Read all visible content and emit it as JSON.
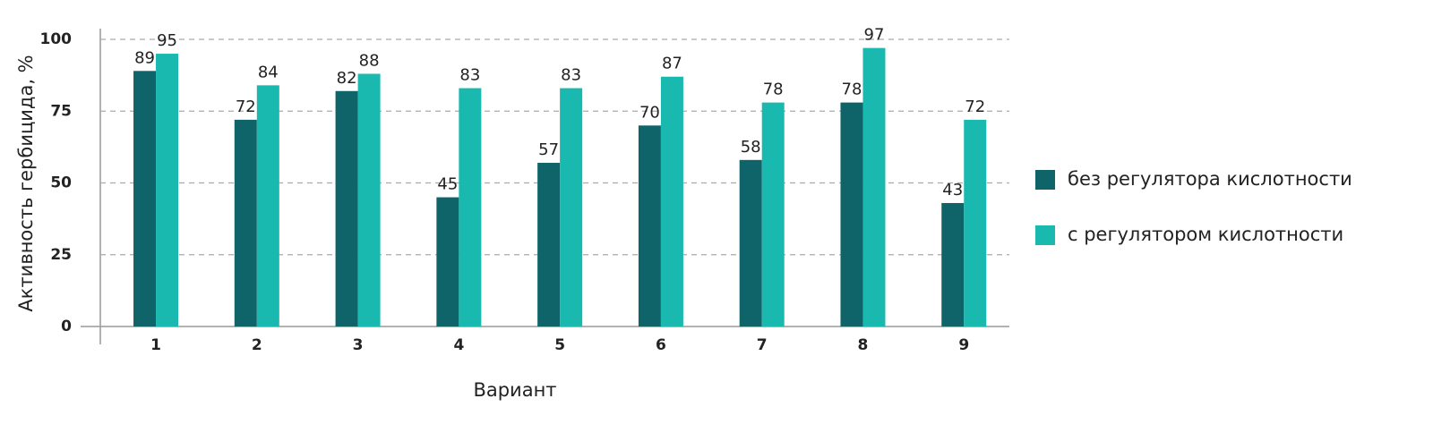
{
  "chart_data": {
    "type": "bar",
    "xlabel": "Вариант",
    "ylabel": "Активность гербицида, %",
    "categories": [
      "1",
      "2",
      "3",
      "4",
      "5",
      "6",
      "7",
      "8",
      "9"
    ],
    "series": [
      {
        "name": "без регулятора кислотности",
        "color": "#0e6469",
        "values": [
          89,
          72,
          82,
          45,
          57,
          70,
          58,
          78,
          43
        ]
      },
      {
        "name": "с регулятором кислотности",
        "color": "#1ab9b0",
        "values": [
          95,
          84,
          88,
          83,
          83,
          87,
          78,
          97,
          72
        ]
      }
    ],
    "ylim": [
      0,
      100
    ],
    "yticks": [
      0,
      25,
      50,
      75,
      100
    ],
    "grid": true,
    "legend": "right"
  }
}
